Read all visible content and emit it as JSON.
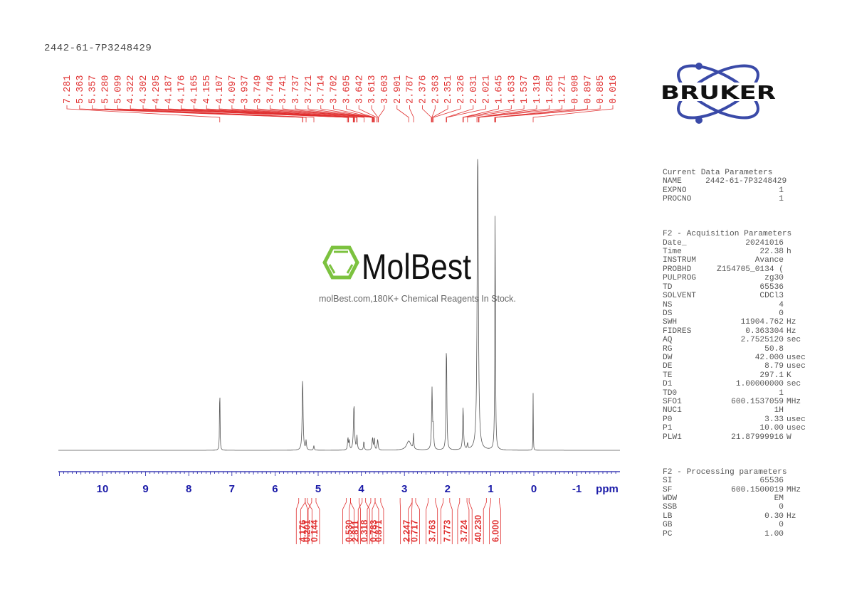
{
  "title": "2442-61-7P3248429",
  "colors": {
    "peak_label": "#e03030",
    "axis": "#1a1aa8",
    "spectrum": "#555555",
    "molbest_green": "#7cc23f",
    "bruker_blue": "#3a4aa8"
  },
  "watermark": {
    "brand": "MolBest",
    "tagline": "molBest.com,180K+ Chemical Reagents In Stock."
  },
  "logo": {
    "text": "BRUKER"
  },
  "params": {
    "current": {
      "header": "Current Data Parameters",
      "rows": [
        {
          "k": "NAME",
          "v": "2442-61-7P3248429",
          "u": ""
        },
        {
          "k": "EXPNO",
          "v": "1",
          "u": ""
        },
        {
          "k": "PROCNO",
          "v": "1",
          "u": ""
        }
      ]
    },
    "acq": {
      "header": "F2 - Acquisition Parameters",
      "rows": [
        {
          "k": "Date_",
          "v": "20241016",
          "u": ""
        },
        {
          "k": "Time",
          "v": "22.38",
          "u": "h"
        },
        {
          "k": "INSTRUM",
          "v": "Avance",
          "u": ""
        },
        {
          "k": "PROBHD",
          "v": "Z154705_0134 (",
          "u": ""
        },
        {
          "k": "PULPROG",
          "v": "zg30",
          "u": ""
        },
        {
          "k": "TD",
          "v": "65536",
          "u": ""
        },
        {
          "k": "SOLVENT",
          "v": "CDCl3",
          "u": ""
        },
        {
          "k": "NS",
          "v": "4",
          "u": ""
        },
        {
          "k": "DS",
          "v": "0",
          "u": ""
        },
        {
          "k": "SWH",
          "v": "11904.762",
          "u": "Hz"
        },
        {
          "k": "FIDRES",
          "v": "0.363304",
          "u": "Hz"
        },
        {
          "k": "AQ",
          "v": "2.7525120",
          "u": "sec"
        },
        {
          "k": "RG",
          "v": "50.8",
          "u": ""
        },
        {
          "k": "DW",
          "v": "42.000",
          "u": "usec"
        },
        {
          "k": "DE",
          "v": "8.79",
          "u": "usec"
        },
        {
          "k": "TE",
          "v": "297.1",
          "u": "K"
        },
        {
          "k": "D1",
          "v": "1.00000000",
          "u": "sec"
        },
        {
          "k": "TD0",
          "v": "1",
          "u": ""
        },
        {
          "k": "SFO1",
          "v": "600.1537059",
          "u": "MHz"
        },
        {
          "k": "NUC1",
          "v": "1H",
          "u": ""
        },
        {
          "k": "P0",
          "v": "3.33",
          "u": "usec"
        },
        {
          "k": "P1",
          "v": "10.00",
          "u": "usec"
        },
        {
          "k": "PLW1",
          "v": "21.87999916",
          "u": "W"
        }
      ]
    },
    "proc": {
      "header": "F2 - Processing parameters",
      "rows": [
        {
          "k": "SI",
          "v": "65536",
          "u": ""
        },
        {
          "k": "SF",
          "v": "600.1500019",
          "u": "MHz"
        },
        {
          "k": "WDW",
          "v": "EM",
          "u": ""
        },
        {
          "k": "SSB",
          "v": "0",
          "u": ""
        },
        {
          "k": "LB",
          "v": "0.30",
          "u": "Hz"
        },
        {
          "k": "GB",
          "v": "0",
          "u": ""
        },
        {
          "k": "PC",
          "v": "1.00",
          "u": ""
        }
      ]
    }
  },
  "chart_data": {
    "type": "line",
    "title": "2442-61-7P3248429",
    "xlabel": "ppm",
    "ylabel": "",
    "xlim": [
      12.0,
      -2.0
    ],
    "x_reversed": true,
    "xticks": [
      10,
      9,
      8,
      7,
      6,
      5,
      4,
      3,
      2,
      1,
      0,
      -1
    ],
    "peak_labels": [
      "7.281",
      "5.363",
      "5.357",
      "5.280",
      "5.099",
      "4.322",
      "4.302",
      "4.295",
      "4.187",
      "4.176",
      "4.165",
      "4.155",
      "4.107",
      "4.097",
      "3.937",
      "3.749",
      "3.746",
      "3.741",
      "3.737",
      "3.721",
      "3.714",
      "3.702",
      "3.695",
      "3.642",
      "3.613",
      "3.603",
      "2.901",
      "2.787",
      "2.376",
      "2.363",
      "2.351",
      "2.326",
      "2.031",
      "2.021",
      "1.645",
      "1.633",
      "1.537",
      "1.319",
      "1.285",
      "1.271",
      "0.908",
      "0.897",
      "0.885",
      "0.016"
    ],
    "peaks": [
      {
        "ppm": 7.281,
        "h": 0.24,
        "w": 0.006
      },
      {
        "ppm": 5.36,
        "h": 0.24,
        "w": 0.012
      },
      {
        "ppm": 5.28,
        "h": 0.03,
        "w": 0.01
      },
      {
        "ppm": 5.1,
        "h": 0.015,
        "w": 0.01
      },
      {
        "ppm": 4.31,
        "h": 0.04,
        "w": 0.01
      },
      {
        "ppm": 4.28,
        "h": 0.03,
        "w": 0.01
      },
      {
        "ppm": 4.17,
        "h": 0.15,
        "w": 0.014
      },
      {
        "ppm": 4.1,
        "h": 0.045,
        "w": 0.01
      },
      {
        "ppm": 3.94,
        "h": 0.03,
        "w": 0.01
      },
      {
        "ppm": 3.74,
        "h": 0.04,
        "w": 0.012
      },
      {
        "ppm": 3.7,
        "h": 0.04,
        "w": 0.01
      },
      {
        "ppm": 3.62,
        "h": 0.035,
        "w": 0.012
      },
      {
        "ppm": 2.9,
        "h": 0.03,
        "w": 0.06
      },
      {
        "ppm": 2.79,
        "h": 0.05,
        "w": 0.008
      },
      {
        "ppm": 2.36,
        "h": 0.2,
        "w": 0.012
      },
      {
        "ppm": 2.33,
        "h": 0.07,
        "w": 0.01
      },
      {
        "ppm": 2.026,
        "h": 0.36,
        "w": 0.01
      },
      {
        "ppm": 1.64,
        "h": 0.14,
        "w": 0.012
      },
      {
        "ppm": 1.537,
        "h": 0.02,
        "w": 0.01
      },
      {
        "ppm": 1.3,
        "h": 1.0,
        "w": 0.016
      },
      {
        "ppm": 0.897,
        "h": 0.83,
        "w": 0.008
      },
      {
        "ppm": 0.016,
        "h": 0.19,
        "w": 0.004
      }
    ],
    "integrals": [
      {
        "value": "4.176",
        "from": 5.45,
        "to": 5.3
      },
      {
        "value": "0.201",
        "from": 5.3,
        "to": 5.25
      },
      {
        "value": "0.144",
        "from": 5.15,
        "to": 5.05
      },
      {
        "value": "0.530",
        "from": 4.35,
        "to": 4.25
      },
      {
        "value": "2.811",
        "from": 4.25,
        "to": 4.05
      },
      {
        "value": "0.318",
        "from": 3.98,
        "to": 3.9
      },
      {
        "value": "0.783",
        "from": 3.78,
        "to": 3.68
      },
      {
        "value": "0.871",
        "from": 3.68,
        "to": 3.55
      },
      {
        "value": "2.247",
        "from": 3.1,
        "to": 2.82
      },
      {
        "value": "0.717",
        "from": 2.82,
        "to": 2.74
      },
      {
        "value": "3.763",
        "from": 2.45,
        "to": 2.28
      },
      {
        "value": "7.773",
        "from": 2.1,
        "to": 1.95
      },
      {
        "value": "3.724",
        "from": 1.72,
        "to": 1.55
      },
      {
        "value": "40.230",
        "from": 1.5,
        "to": 1.1
      },
      {
        "value": "6.000",
        "from": 1.0,
        "to": 0.8
      }
    ]
  }
}
